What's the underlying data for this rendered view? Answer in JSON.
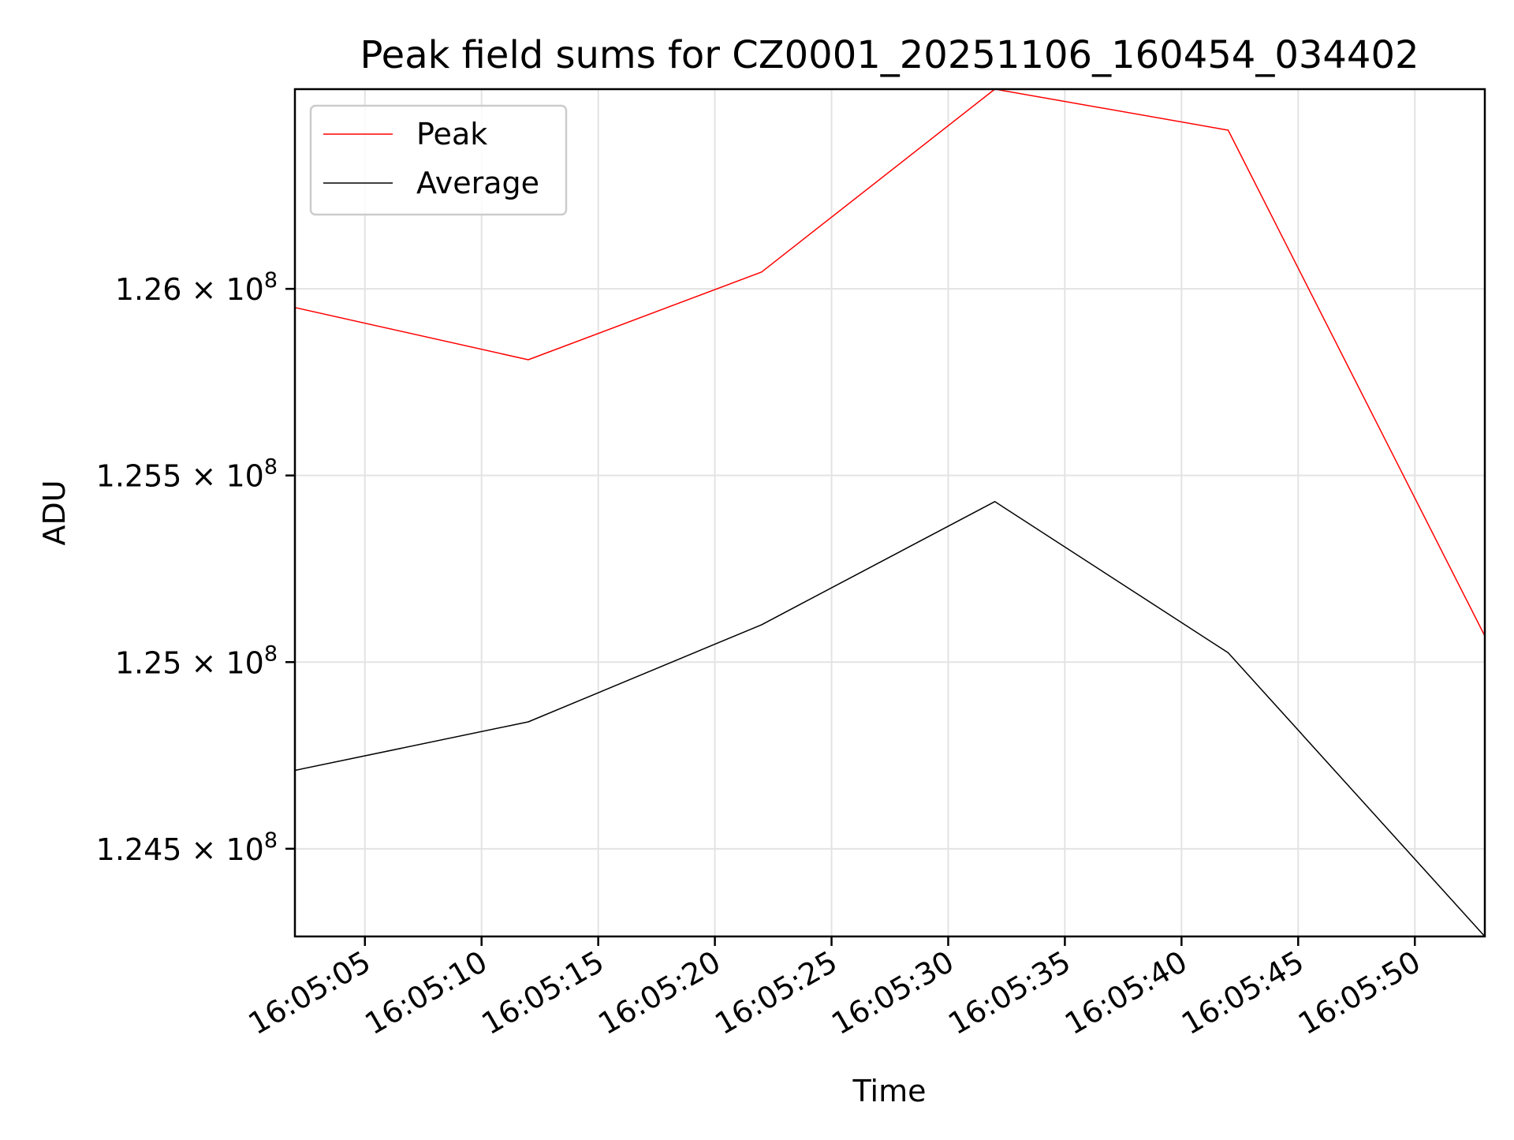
{
  "chart_data": {
    "type": "line",
    "title": "Peak field sums for CZ0001_20251106_160454_034402",
    "xlabel": "Time",
    "ylabel": "ADU",
    "x": [
      "16:05:02",
      "16:05:12",
      "16:05:22",
      "16:05:32",
      "16:05:42",
      "16:05:53"
    ],
    "xlim": [
      "16:05:02",
      "16:05:53"
    ],
    "ylim": [
      124265000,
      126535000
    ],
    "y_ticks": [
      124500000,
      125000000,
      125500000,
      126000000
    ],
    "y_tick_labels": [
      {
        "base": "1.245 × 10",
        "exp": "8"
      },
      {
        "base": "1.25 × 10",
        "exp": "8"
      },
      {
        "base": "1.255 × 10",
        "exp": "8"
      },
      {
        "base": "1.26 × 10",
        "exp": "8"
      }
    ],
    "x_ticks": [
      "16:05:05",
      "16:05:10",
      "16:05:15",
      "16:05:20",
      "16:05:25",
      "16:05:30",
      "16:05:35",
      "16:05:40",
      "16:05:45",
      "16:05:50"
    ],
    "grid": true,
    "legend_position": "upper-left",
    "series": [
      {
        "name": "Peak",
        "color": "#ff0000",
        "values": [
          125950000,
          125810000,
          126045000,
          126535000,
          126425000,
          125070000
        ]
      },
      {
        "name": "Average",
        "color": "#000000",
        "values": [
          124710000,
          124840000,
          125100000,
          125430000,
          125025000,
          124265000
        ]
      }
    ]
  }
}
